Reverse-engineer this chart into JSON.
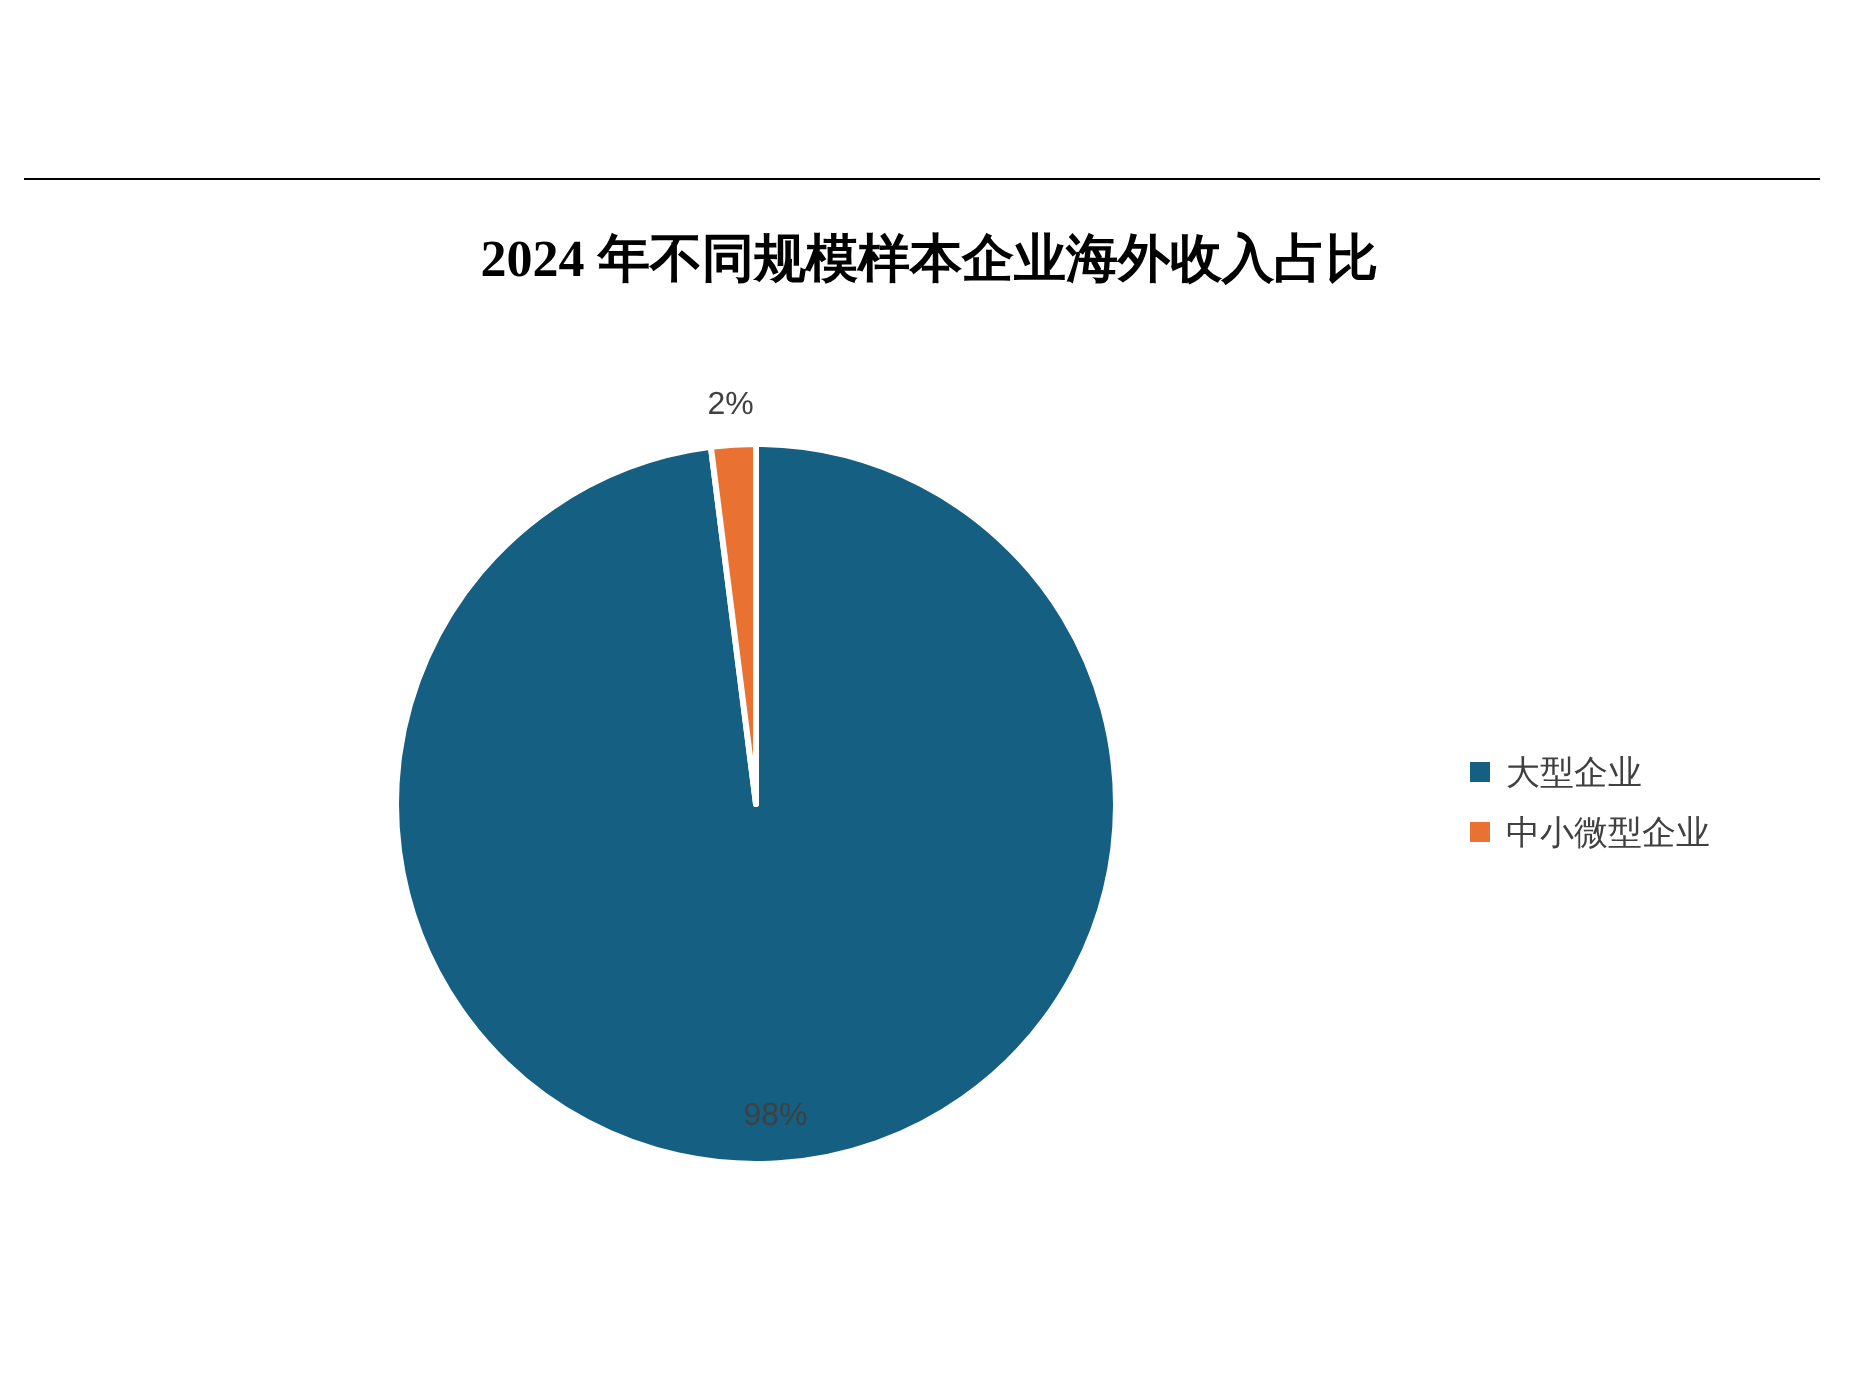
{
  "chart_data": {
    "type": "pie",
    "title": "2024 年不同规模样本企业海外收入占比",
    "categories": [
      "大型企业",
      "中小微型企业"
    ],
    "values": [
      98,
      2
    ],
    "colors": [
      "#155f82",
      "#e97132"
    ],
    "value_labels": [
      "98%",
      "2%"
    ],
    "legend": "right"
  }
}
